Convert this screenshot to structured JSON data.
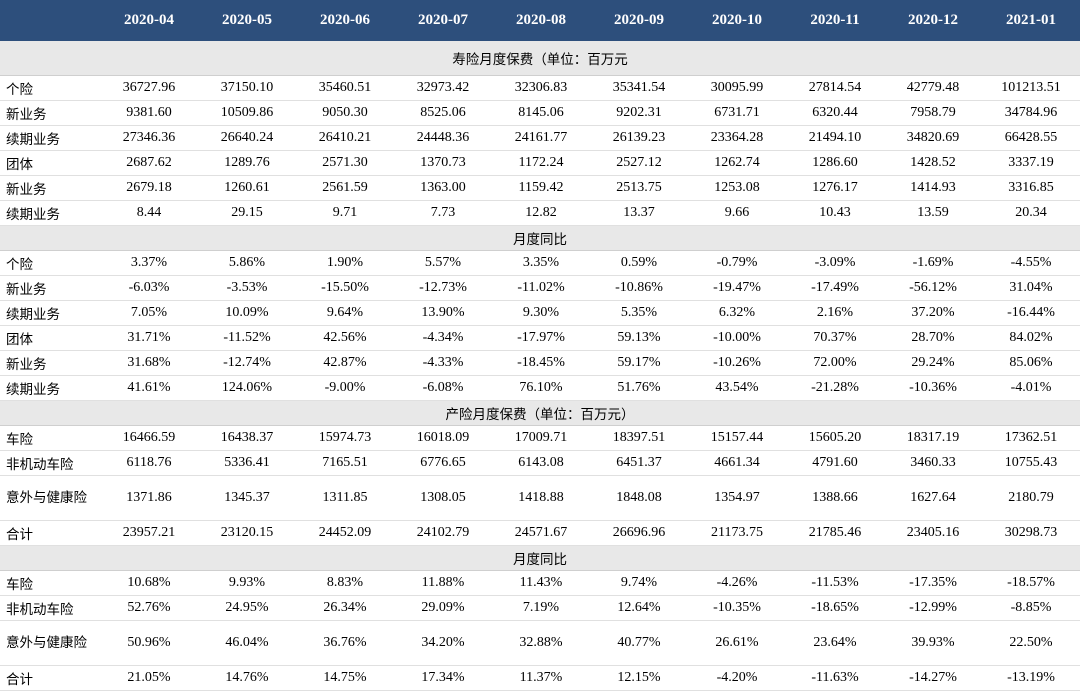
{
  "months": [
    "2020-04",
    "2020-05",
    "2020-06",
    "2020-07",
    "2020-08",
    "2020-09",
    "2020-10",
    "2020-11",
    "2020-12",
    "2021-01"
  ],
  "sections": [
    {
      "title": "寿险月度保费（单位：百万元",
      "rows": [
        {
          "label": "个险",
          "values": [
            "36727.96",
            "37150.10",
            "35460.51",
            "32973.42",
            "32306.83",
            "35341.54",
            "30095.99",
            "27814.54",
            "42779.48",
            "101213.51"
          ]
        },
        {
          "label": "新业务",
          "values": [
            "9381.60",
            "10509.86",
            "9050.30",
            "8525.06",
            "8145.06",
            "9202.31",
            "6731.71",
            "6320.44",
            "7958.79",
            "34784.96"
          ]
        },
        {
          "label": "续期业务",
          "values": [
            "27346.36",
            "26640.24",
            "26410.21",
            "24448.36",
            "24161.77",
            "26139.23",
            "23364.28",
            "21494.10",
            "34820.69",
            "66428.55"
          ]
        },
        {
          "label": "团体",
          "values": [
            "2687.62",
            "1289.76",
            "2571.30",
            "1370.73",
            "1172.24",
            "2527.12",
            "1262.74",
            "1286.60",
            "1428.52",
            "3337.19"
          ]
        },
        {
          "label": "新业务",
          "values": [
            "2679.18",
            "1260.61",
            "2561.59",
            "1363.00",
            "1159.42",
            "2513.75",
            "1253.08",
            "1276.17",
            "1414.93",
            "3316.85"
          ]
        },
        {
          "label": "续期业务",
          "values": [
            "8.44",
            "29.15",
            "9.71",
            "7.73",
            "12.82",
            "13.37",
            "9.66",
            "10.43",
            "13.59",
            "20.34"
          ]
        }
      ]
    },
    {
      "title": "月度同比",
      "rows": [
        {
          "label": "个险",
          "values": [
            "3.37%",
            "5.86%",
            "1.90%",
            "5.57%",
            "3.35%",
            "0.59%",
            "-0.79%",
            "-3.09%",
            "-1.69%",
            "-4.55%"
          ]
        },
        {
          "label": "新业务",
          "values": [
            "-6.03%",
            "-3.53%",
            "-15.50%",
            "-12.73%",
            "-11.02%",
            "-10.86%",
            "-19.47%",
            "-17.49%",
            "-56.12%",
            "31.04%"
          ]
        },
        {
          "label": "续期业务",
          "values": [
            "7.05%",
            "10.09%",
            "9.64%",
            "13.90%",
            "9.30%",
            "5.35%",
            "6.32%",
            "2.16%",
            "37.20%",
            "-16.44%"
          ]
        },
        {
          "label": "团体",
          "values": [
            "31.71%",
            "-11.52%",
            "42.56%",
            "-4.34%",
            "-17.97%",
            "59.13%",
            "-10.00%",
            "70.37%",
            "28.70%",
            "84.02%"
          ]
        },
        {
          "label": "新业务",
          "values": [
            "31.68%",
            "-12.74%",
            "42.87%",
            "-4.33%",
            "-18.45%",
            "59.17%",
            "-10.26%",
            "72.00%",
            "29.24%",
            "85.06%"
          ]
        },
        {
          "label": "续期业务",
          "values": [
            "41.61%",
            "124.06%",
            "-9.00%",
            "-6.08%",
            "76.10%",
            "51.76%",
            "43.54%",
            "-21.28%",
            "-10.36%",
            "-4.01%"
          ]
        }
      ]
    },
    {
      "title": "产险月度保费（单位：百万元）",
      "rows": [
        {
          "label": "车险",
          "values": [
            "16466.59",
            "16438.37",
            "15974.73",
            "16018.09",
            "17009.71",
            "18397.51",
            "15157.44",
            "15605.20",
            "18317.19",
            "17362.51"
          ]
        },
        {
          "label": "非机动车险",
          "values": [
            "6118.76",
            "5336.41",
            "7165.51",
            "6776.65",
            "6143.08",
            "6451.37",
            "4661.34",
            "4791.60",
            "3460.33",
            "10755.43"
          ]
        },
        {
          "label": "意外与健康险",
          "wrap": true,
          "values": [
            "1371.86",
            "1345.37",
            "1311.85",
            "1308.05",
            "1418.88",
            "1848.08",
            "1354.97",
            "1388.66",
            "1627.64",
            "2180.79"
          ]
        },
        {
          "label": "合计",
          "values": [
            "23957.21",
            "23120.15",
            "24452.09",
            "24102.79",
            "24571.67",
            "26696.96",
            "21173.75",
            "21785.46",
            "23405.16",
            "30298.73"
          ]
        }
      ]
    },
    {
      "title": "月度同比",
      "rows": [
        {
          "label": "车险",
          "values": [
            "10.68%",
            "9.93%",
            "8.83%",
            "11.88%",
            "11.43%",
            "9.74%",
            "-4.26%",
            "-11.53%",
            "-17.35%",
            "-18.57%"
          ]
        },
        {
          "label": "非机动车险",
          "values": [
            "52.76%",
            "24.95%",
            "26.34%",
            "29.09%",
            "7.19%",
            "12.64%",
            "-10.35%",
            "-18.65%",
            "-12.99%",
            "-8.85%"
          ]
        },
        {
          "label": "意外与健康险",
          "wrap": true,
          "values": [
            "50.96%",
            "46.04%",
            "36.76%",
            "34.20%",
            "32.88%",
            "40.77%",
            "26.61%",
            "23.64%",
            "39.93%",
            "22.50%"
          ]
        },
        {
          "label": "合计",
          "values": [
            "21.05%",
            "14.76%",
            "14.75%",
            "17.34%",
            "11.37%",
            "12.15%",
            "-4.20%",
            "-11.63%",
            "-14.27%",
            "-13.19%"
          ]
        }
      ]
    }
  ]
}
